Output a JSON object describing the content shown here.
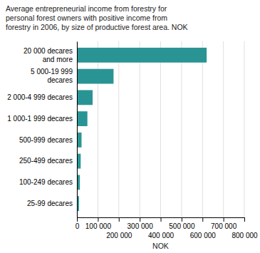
{
  "chart_data": {
    "type": "bar",
    "orientation": "horizontal",
    "title": "Average entrepreneurial income from forestry for\npersonal forest owners with positive income from\nforestry in 2006, by size of productive forest area. NOK",
    "xlabel": "NOK",
    "categories": [
      "20 000 decares\nand more",
      "5 000-19 999\ndecares",
      "2 000-4 999 decares",
      "1 000-1 999 decares",
      "500-999 decares",
      "250-499 decares",
      "100-249 decares",
      "25-99 decares"
    ],
    "values": [
      620000,
      175000,
      75000,
      50000,
      22000,
      18000,
      14000,
      10000
    ],
    "color": "#2a9494",
    "xlim": [
      0,
      800000
    ],
    "xticks": [
      0,
      {
        "value": 100000,
        "label": "100 000"
      },
      {
        "value": 200000,
        "label": "200 000"
      },
      {
        "value": 300000,
        "label": "300 000"
      },
      {
        "value": 400000,
        "label": "400 000"
      },
      {
        "value": 500000,
        "label": "500 000"
      },
      {
        "value": 600000,
        "label": "600 000"
      },
      {
        "value": 700000,
        "label": "700 000"
      },
      {
        "value": 800000,
        "label": "800 000"
      }
    ],
    "grid": true
  }
}
